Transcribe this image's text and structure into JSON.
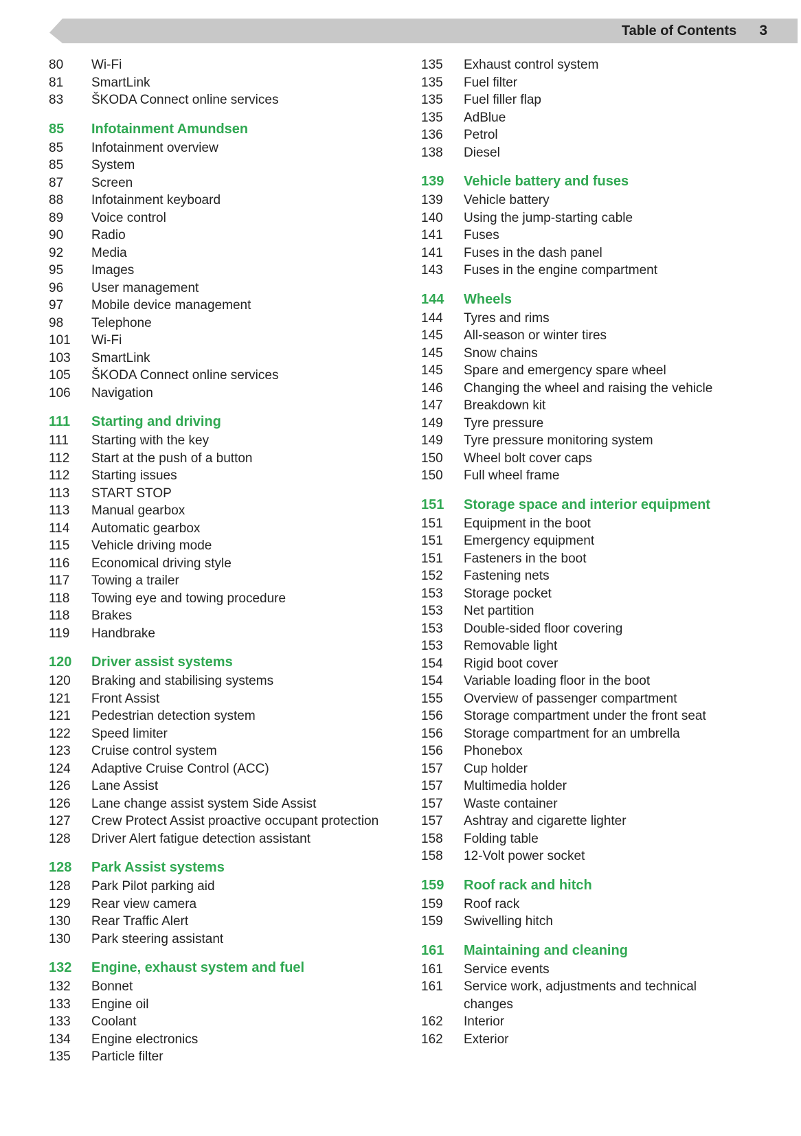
{
  "header": {
    "title": "Table of Contents",
    "page_number": "3"
  },
  "accent_color": "#30a852",
  "banner_color": "#c8c8c8",
  "columns": [
    {
      "groups": [
        {
          "items": [
            {
              "page": "80",
              "label": "Wi-Fi"
            },
            {
              "page": "81",
              "label": "SmartLink"
            },
            {
              "page": "83",
              "label": "ŠKODA Connect online services"
            }
          ]
        },
        {
          "heading": {
            "page": "85",
            "label": "Infotainment Amundsen"
          },
          "items": [
            {
              "page": "85",
              "label": "Infotainment overview"
            },
            {
              "page": "85",
              "label": "System"
            },
            {
              "page": "87",
              "label": "Screen"
            },
            {
              "page": "88",
              "label": "Infotainment keyboard"
            },
            {
              "page": "89",
              "label": "Voice control"
            },
            {
              "page": "90",
              "label": "Radio"
            },
            {
              "page": "92",
              "label": "Media"
            },
            {
              "page": "95",
              "label": "Images"
            },
            {
              "page": "96",
              "label": "User management"
            },
            {
              "page": "97",
              "label": "Mobile device management"
            },
            {
              "page": "98",
              "label": "Telephone"
            },
            {
              "page": "101",
              "label": "Wi-Fi"
            },
            {
              "page": "103",
              "label": "SmartLink"
            },
            {
              "page": "105",
              "label": "ŠKODA Connect online services"
            },
            {
              "page": "106",
              "label": "Navigation"
            }
          ]
        },
        {
          "heading": {
            "page": "111",
            "label": "Starting and driving"
          },
          "items": [
            {
              "page": "111",
              "label": "Starting with the key"
            },
            {
              "page": "112",
              "label": "Start at the push of a button"
            },
            {
              "page": "112",
              "label": "Starting issues"
            },
            {
              "page": "113",
              "label": "START STOP"
            },
            {
              "page": "113",
              "label": "Manual gearbox"
            },
            {
              "page": "114",
              "label": "Automatic gearbox"
            },
            {
              "page": "115",
              "label": "Vehicle driving mode"
            },
            {
              "page": "116",
              "label": "Economical driving style"
            },
            {
              "page": "117",
              "label": "Towing a trailer"
            },
            {
              "page": "118",
              "label": "Towing eye and towing procedure"
            },
            {
              "page": "118",
              "label": "Brakes"
            },
            {
              "page": "119",
              "label": "Handbrake"
            }
          ]
        },
        {
          "heading": {
            "page": "120",
            "label": "Driver assist systems"
          },
          "items": [
            {
              "page": "120",
              "label": "Braking and stabilising systems"
            },
            {
              "page": "121",
              "label": "Front Assist"
            },
            {
              "page": "121",
              "label": "Pedestrian detection system"
            },
            {
              "page": "122",
              "label": "Speed limiter"
            },
            {
              "page": "123",
              "label": "Cruise control system"
            },
            {
              "page": "124",
              "label": "Adaptive Cruise Control (ACC)"
            },
            {
              "page": "126",
              "label": "Lane Assist"
            },
            {
              "page": "126",
              "label": "Lane change assist system Side Assist"
            },
            {
              "page": "127",
              "label": "Crew Protect Assist proactive occupant protection"
            },
            {
              "page": "128",
              "label": "Driver Alert fatigue detection assistant"
            }
          ]
        },
        {
          "heading": {
            "page": "128",
            "label": "Park Assist systems"
          },
          "items": [
            {
              "page": "128",
              "label": "Park Pilot parking aid"
            },
            {
              "page": "129",
              "label": "Rear view camera"
            },
            {
              "page": "130",
              "label": "Rear Traffic Alert"
            },
            {
              "page": "130",
              "label": "Park steering assistant"
            }
          ]
        },
        {
          "heading": {
            "page": "132",
            "label": "Engine, exhaust system and fuel"
          },
          "items": [
            {
              "page": "132",
              "label": "Bonnet"
            },
            {
              "page": "133",
              "label": "Engine oil"
            },
            {
              "page": "133",
              "label": "Coolant"
            },
            {
              "page": "134",
              "label": "Engine electronics"
            },
            {
              "page": "135",
              "label": "Particle filter"
            }
          ]
        }
      ]
    },
    {
      "groups": [
        {
          "items": [
            {
              "page": "135",
              "label": "Exhaust control system"
            },
            {
              "page": "135",
              "label": "Fuel filter"
            },
            {
              "page": "135",
              "label": "Fuel filler flap"
            },
            {
              "page": "135",
              "label": "AdBlue"
            },
            {
              "page": "136",
              "label": "Petrol"
            },
            {
              "page": "138",
              "label": "Diesel"
            }
          ]
        },
        {
          "heading": {
            "page": "139",
            "label": "Vehicle battery and fuses"
          },
          "items": [
            {
              "page": "139",
              "label": "Vehicle battery"
            },
            {
              "page": "140",
              "label": "Using the jump-starting cable"
            },
            {
              "page": "141",
              "label": "Fuses"
            },
            {
              "page": "141",
              "label": "Fuses in the dash panel"
            },
            {
              "page": "143",
              "label": "Fuses in the engine compartment"
            }
          ]
        },
        {
          "heading": {
            "page": "144",
            "label": "Wheels"
          },
          "items": [
            {
              "page": "144",
              "label": "Tyres and rims"
            },
            {
              "page": "145",
              "label": "All-season or winter tires"
            },
            {
              "page": "145",
              "label": "Snow chains"
            },
            {
              "page": "145",
              "label": "Spare and emergency spare wheel"
            },
            {
              "page": "146",
              "label": "Changing the wheel and raising the vehicle"
            },
            {
              "page": "147",
              "label": "Breakdown kit"
            },
            {
              "page": "149",
              "label": "Tyre pressure"
            },
            {
              "page": "149",
              "label": "Tyre pressure monitoring system"
            },
            {
              "page": "150",
              "label": "Wheel bolt cover caps"
            },
            {
              "page": "150",
              "label": "Full wheel frame"
            }
          ]
        },
        {
          "heading": {
            "page": "151",
            "label": "Storage space and interior equipment"
          },
          "items": [
            {
              "page": "151",
              "label": "Equipment in the boot"
            },
            {
              "page": "151",
              "label": "Emergency equipment"
            },
            {
              "page": "151",
              "label": "Fasteners in the boot"
            },
            {
              "page": "152",
              "label": "Fastening nets"
            },
            {
              "page": "153",
              "label": "Storage pocket"
            },
            {
              "page": "153",
              "label": "Net partition"
            },
            {
              "page": "153",
              "label": "Double-sided floor covering"
            },
            {
              "page": "153",
              "label": "Removable light"
            },
            {
              "page": "154",
              "label": "Rigid boot cover"
            },
            {
              "page": "154",
              "label": "Variable loading floor in the boot"
            },
            {
              "page": "155",
              "label": "Overview of passenger compartment"
            },
            {
              "page": "156",
              "label": "Storage compartment under the front seat"
            },
            {
              "page": "156",
              "label": "Storage compartment for an umbrella"
            },
            {
              "page": "156",
              "label": "Phonebox"
            },
            {
              "page": "157",
              "label": "Cup holder"
            },
            {
              "page": "157",
              "label": "Multimedia holder"
            },
            {
              "page": "157",
              "label": "Waste container"
            },
            {
              "page": "157",
              "label": "Ashtray and cigarette lighter"
            },
            {
              "page": "158",
              "label": "Folding table"
            },
            {
              "page": "158",
              "label": "12-Volt power socket"
            }
          ]
        },
        {
          "heading": {
            "page": "159",
            "label": "Roof rack and hitch"
          },
          "items": [
            {
              "page": "159",
              "label": "Roof rack"
            },
            {
              "page": "159",
              "label": "Swivelling hitch"
            }
          ]
        },
        {
          "heading": {
            "page": "161",
            "label": "Maintaining and cleaning"
          },
          "items": [
            {
              "page": "161",
              "label": "Service events"
            },
            {
              "page": "161",
              "label": "Service work, adjustments and technical changes"
            },
            {
              "page": "162",
              "label": "Interior"
            },
            {
              "page": "162",
              "label": "Exterior"
            }
          ]
        }
      ]
    }
  ]
}
